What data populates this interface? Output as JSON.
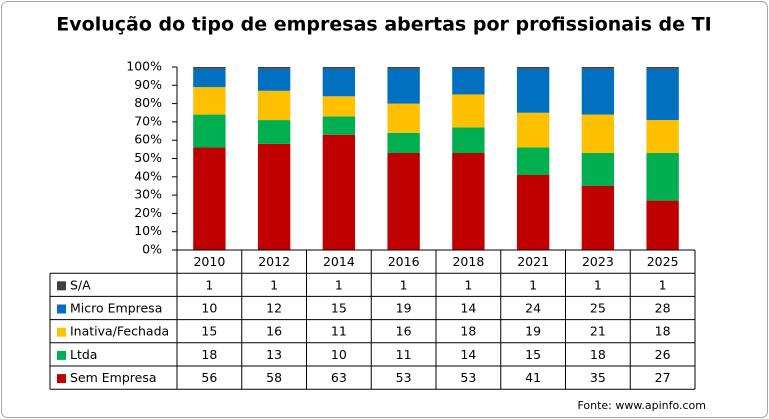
{
  "chart_data": {
    "type": "stacked-bar-100",
    "title": "Evolução do tipo de empresas abertas por profissionais de TI",
    "source": "Fonte:  www.apinfo.com",
    "categories": [
      "2010",
      "2012",
      "2014",
      "2016",
      "2018",
      "2021",
      "2023",
      "2025"
    ],
    "series": [
      {
        "name": "Sem Empresa",
        "color": "#c00000",
        "values": [
          56,
          58,
          63,
          53,
          53,
          41,
          35,
          27
        ]
      },
      {
        "name": "Ltda",
        "color": "#00b050",
        "values": [
          18,
          13,
          10,
          11,
          14,
          15,
          18,
          26
        ]
      },
      {
        "name": "Inativa/Fechada",
        "color": "#ffc000",
        "values": [
          15,
          16,
          11,
          16,
          18,
          19,
          21,
          18
        ]
      },
      {
        "name": "Micro Empresa",
        "color": "#0070c0",
        "values": [
          10,
          12,
          15,
          19,
          14,
          24,
          25,
          28
        ]
      },
      {
        "name": "S/A",
        "color": "#404040",
        "values": [
          1,
          1,
          1,
          1,
          1,
          1,
          1,
          1
        ]
      }
    ],
    "ylim": [
      0,
      100
    ],
    "yticks": [
      {
        "value": 0,
        "label": "0%"
      },
      {
        "value": 10,
        "label": "10%"
      },
      {
        "value": 20,
        "label": "20%"
      },
      {
        "value": 30,
        "label": "30%"
      },
      {
        "value": 40,
        "label": "40%"
      },
      {
        "value": 50,
        "label": "50%"
      },
      {
        "value": 60,
        "label": "60%"
      },
      {
        "value": 70,
        "label": "70%"
      },
      {
        "value": 80,
        "label": "80%"
      },
      {
        "value": 90,
        "label": "90%"
      },
      {
        "value": 100,
        "label": "100%"
      }
    ],
    "grid": false
  }
}
